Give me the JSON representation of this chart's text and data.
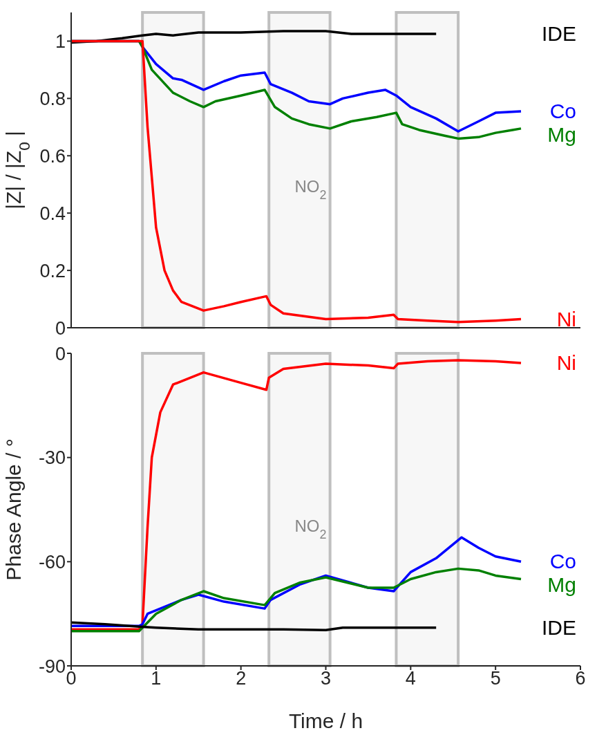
{
  "chart_data": [
    {
      "type": "line",
      "ylabel": "|Z| / |Z$_{0}$|",
      "xlim": [
        0,
        6
      ],
      "xticks": [
        0,
        1,
        2,
        3,
        4,
        5,
        6
      ],
      "ylim": [
        0,
        1.1
      ],
      "yticks": [
        0,
        0.2,
        0.4,
        0.6,
        0.8,
        1
      ],
      "tick_labels": "y",
      "annotations": [
        "NO$_{2}$"
      ],
      "bands": [
        {
          "axis": "x",
          "from": 0.84,
          "to": 1.56,
          "color": "#bfbfbf"
        },
        {
          "axis": "x",
          "from": 2.33,
          "to": 3.05,
          "color": "#bfbfbf"
        },
        {
          "axis": "x",
          "from": 3.83,
          "to": 4.56,
          "color": "#bfbfbf"
        }
      ],
      "series": [
        {
          "name": "IDE",
          "color": "#000000",
          "x": [
            0,
            0.3,
            0.6,
            0.84,
            1.0,
            1.2,
            1.5,
            2.0,
            2.5,
            3.0,
            3.3,
            3.8,
            4.3
          ],
          "values": [
            0.995,
            1.0,
            1.01,
            1.02,
            1.025,
            1.02,
            1.03,
            1.03,
            1.035,
            1.035,
            1.025,
            1.025,
            1.025
          ]
        },
        {
          "name": "Co",
          "color": "#0000ff",
          "x": [
            0,
            0.8,
            0.84,
            1.0,
            1.2,
            1.3,
            1.56,
            1.8,
            2.0,
            2.28,
            2.35,
            2.6,
            2.8,
            3.05,
            3.2,
            3.5,
            3.7,
            3.83,
            4.0,
            4.3,
            4.56,
            4.8,
            5.0,
            5.3
          ],
          "values": [
            1.0,
            1.0,
            0.98,
            0.92,
            0.87,
            0.865,
            0.83,
            0.86,
            0.88,
            0.89,
            0.85,
            0.82,
            0.79,
            0.78,
            0.8,
            0.82,
            0.83,
            0.81,
            0.77,
            0.73,
            0.685,
            0.72,
            0.75,
            0.755
          ]
        },
        {
          "name": "Mg",
          "color": "#008000",
          "x": [
            0,
            0.8,
            0.84,
            0.95,
            1.2,
            1.4,
            1.56,
            1.7,
            2.0,
            2.28,
            2.4,
            2.6,
            2.8,
            3.05,
            3.3,
            3.6,
            3.83,
            3.9,
            4.1,
            4.4,
            4.56,
            4.8,
            5.0,
            5.2,
            5.3
          ],
          "values": [
            1.0,
            1.0,
            0.98,
            0.9,
            0.82,
            0.79,
            0.77,
            0.79,
            0.81,
            0.83,
            0.77,
            0.73,
            0.71,
            0.695,
            0.72,
            0.735,
            0.75,
            0.71,
            0.69,
            0.67,
            0.66,
            0.665,
            0.68,
            0.69,
            0.695
          ]
        },
        {
          "name": "Ni",
          "color": "#ff0000",
          "x": [
            0,
            0.8,
            0.84,
            0.9,
            1.0,
            1.1,
            1.2,
            1.3,
            1.56,
            1.8,
            2.0,
            2.3,
            2.35,
            2.5,
            3.0,
            3.5,
            3.8,
            3.85,
            4.2,
            4.56,
            5.0,
            5.3
          ],
          "values": [
            1.0,
            1.0,
            1.0,
            0.7,
            0.35,
            0.2,
            0.13,
            0.09,
            0.06,
            0.075,
            0.09,
            0.11,
            0.08,
            0.05,
            0.03,
            0.035,
            0.045,
            0.03,
            0.025,
            0.02,
            0.025,
            0.03
          ]
        }
      ]
    },
    {
      "type": "line",
      "xlabel": "Time / h",
      "ylabel": "Phase Angle / °",
      "xlim": [
        0,
        6
      ],
      "xticks": [
        0,
        1,
        2,
        3,
        4,
        5,
        6
      ],
      "ylim": [
        -90,
        0
      ],
      "yticks": [
        -90,
        -60,
        -30,
        0
      ],
      "annotations": [
        "NO$_{2}$"
      ],
      "bands": [
        {
          "axis": "x",
          "from": 0.84,
          "to": 1.56,
          "color": "#bfbfbf"
        },
        {
          "axis": "x",
          "from": 2.33,
          "to": 3.05,
          "color": "#bfbfbf"
        },
        {
          "axis": "x",
          "from": 3.83,
          "to": 4.56,
          "color": "#bfbfbf"
        }
      ],
      "series": [
        {
          "name": "Ni",
          "color": "#ff0000",
          "x": [
            0,
            0.8,
            0.84,
            0.9,
            0.95,
            1.05,
            1.2,
            1.56,
            2.0,
            2.3,
            2.33,
            2.5,
            3.0,
            3.5,
            3.8,
            3.85,
            4.2,
            4.56,
            5.0,
            5.3
          ],
          "values": [
            -79.5,
            -79.5,
            -78,
            -50,
            -30,
            -17,
            -9,
            -5.5,
            -8.5,
            -10.5,
            -7,
            -4.5,
            -3,
            -3.5,
            -4.3,
            -3,
            -2.3,
            -2,
            -2.3,
            -2.8
          ]
        },
        {
          "name": "Co",
          "color": "#0000ff",
          "x": [
            0,
            0.8,
            0.84,
            0.9,
            1.3,
            1.5,
            1.8,
            2.28,
            2.35,
            2.7,
            3.0,
            3.5,
            3.8,
            4.0,
            4.3,
            4.6,
            4.8,
            5.0,
            5.3
          ],
          "values": [
            -78.5,
            -78.5,
            -78,
            -75,
            -71,
            -69.5,
            -71.5,
            -73.5,
            -71,
            -66.5,
            -64,
            -67.5,
            -68.5,
            -63,
            -59,
            -53,
            -56,
            -58.5,
            -60
          ]
        },
        {
          "name": "Mg",
          "color": "#008000",
          "x": [
            0,
            0.8,
            0.84,
            1.0,
            1.3,
            1.56,
            1.8,
            2.28,
            2.4,
            2.7,
            3.0,
            3.5,
            3.8,
            4.0,
            4.3,
            4.56,
            4.8,
            5.0,
            5.3
          ],
          "values": [
            -80,
            -80,
            -79,
            -75,
            -71,
            -68.5,
            -70.5,
            -72.5,
            -69,
            -66,
            -64.5,
            -67.5,
            -67.5,
            -65,
            -63,
            -62,
            -62.5,
            -64,
            -65
          ]
        },
        {
          "name": "IDE",
          "color": "#000000",
          "x": [
            0,
            0.4,
            0.8,
            1.0,
            1.5,
            2.0,
            2.5,
            3.0,
            3.2,
            4.3
          ],
          "values": [
            -77.5,
            -78,
            -78.7,
            -79,
            -79.5,
            -79.5,
            -79.5,
            -79.7,
            -79,
            -79
          ]
        }
      ]
    }
  ]
}
